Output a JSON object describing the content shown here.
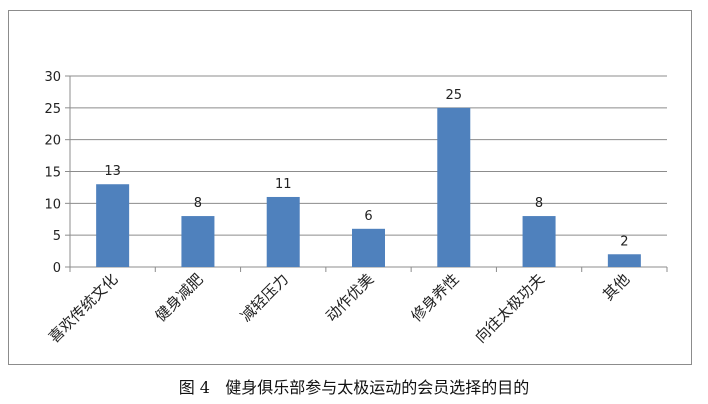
{
  "chart_data": {
    "type": "bar",
    "categories": [
      "喜欢传统文化",
      "健身减肥",
      "减轻压力",
      "动作优美",
      "修身养性",
      "向往太极功夫",
      "其他"
    ],
    "values": [
      13,
      8,
      11,
      6,
      25,
      8,
      2
    ],
    "title": "",
    "xlabel": "",
    "ylabel": "",
    "ylim": [
      0,
      30
    ],
    "yticks": [
      0,
      5,
      10,
      15,
      20,
      25,
      30
    ],
    "grid": true,
    "legend": "none",
    "bar_color": "#4f81bd"
  },
  "caption": {
    "figure_label": "图 4",
    "text": "健身俱乐部参与太极运动的会员选择的目的"
  }
}
